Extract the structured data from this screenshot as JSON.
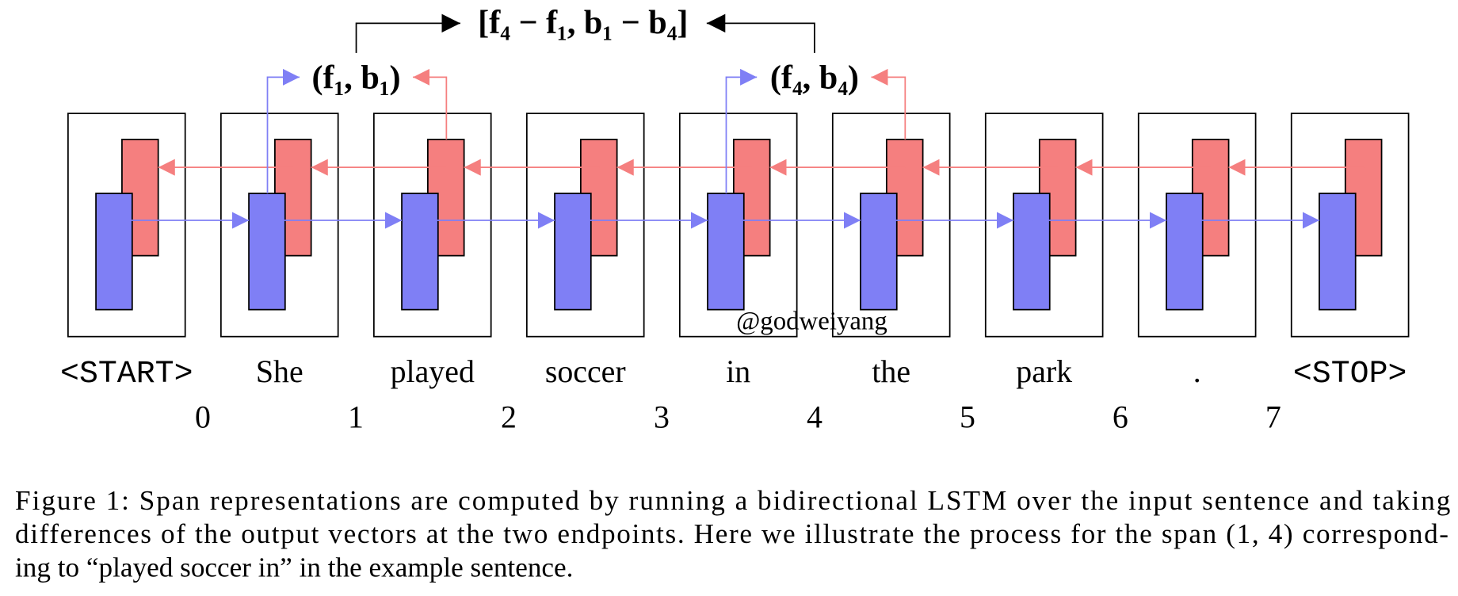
{
  "figure": {
    "top_label": "[f₄ − f₁, b₁ − b₄]",
    "span_labels": [
      "(f₁, b₁)",
      "(f₄, b₄)"
    ],
    "tokens": [
      "<START>",
      "She",
      "played",
      "soccer",
      "in",
      "the",
      "park",
      ".",
      "<STOP>"
    ],
    "positions": [
      0,
      1,
      2,
      3,
      4,
      5,
      6,
      7
    ],
    "watermark": "@godweiyang"
  },
  "caption": {
    "lines": [
      "Figure 1: Span representations are computed by running a bidirectional LSTM over the input sentence and taking",
      "differences of the output vectors at the two endpoints. Here we illustrate the process for the span (1, 4) correspond-",
      "ing to “played soccer in” in the example sentence."
    ]
  }
}
